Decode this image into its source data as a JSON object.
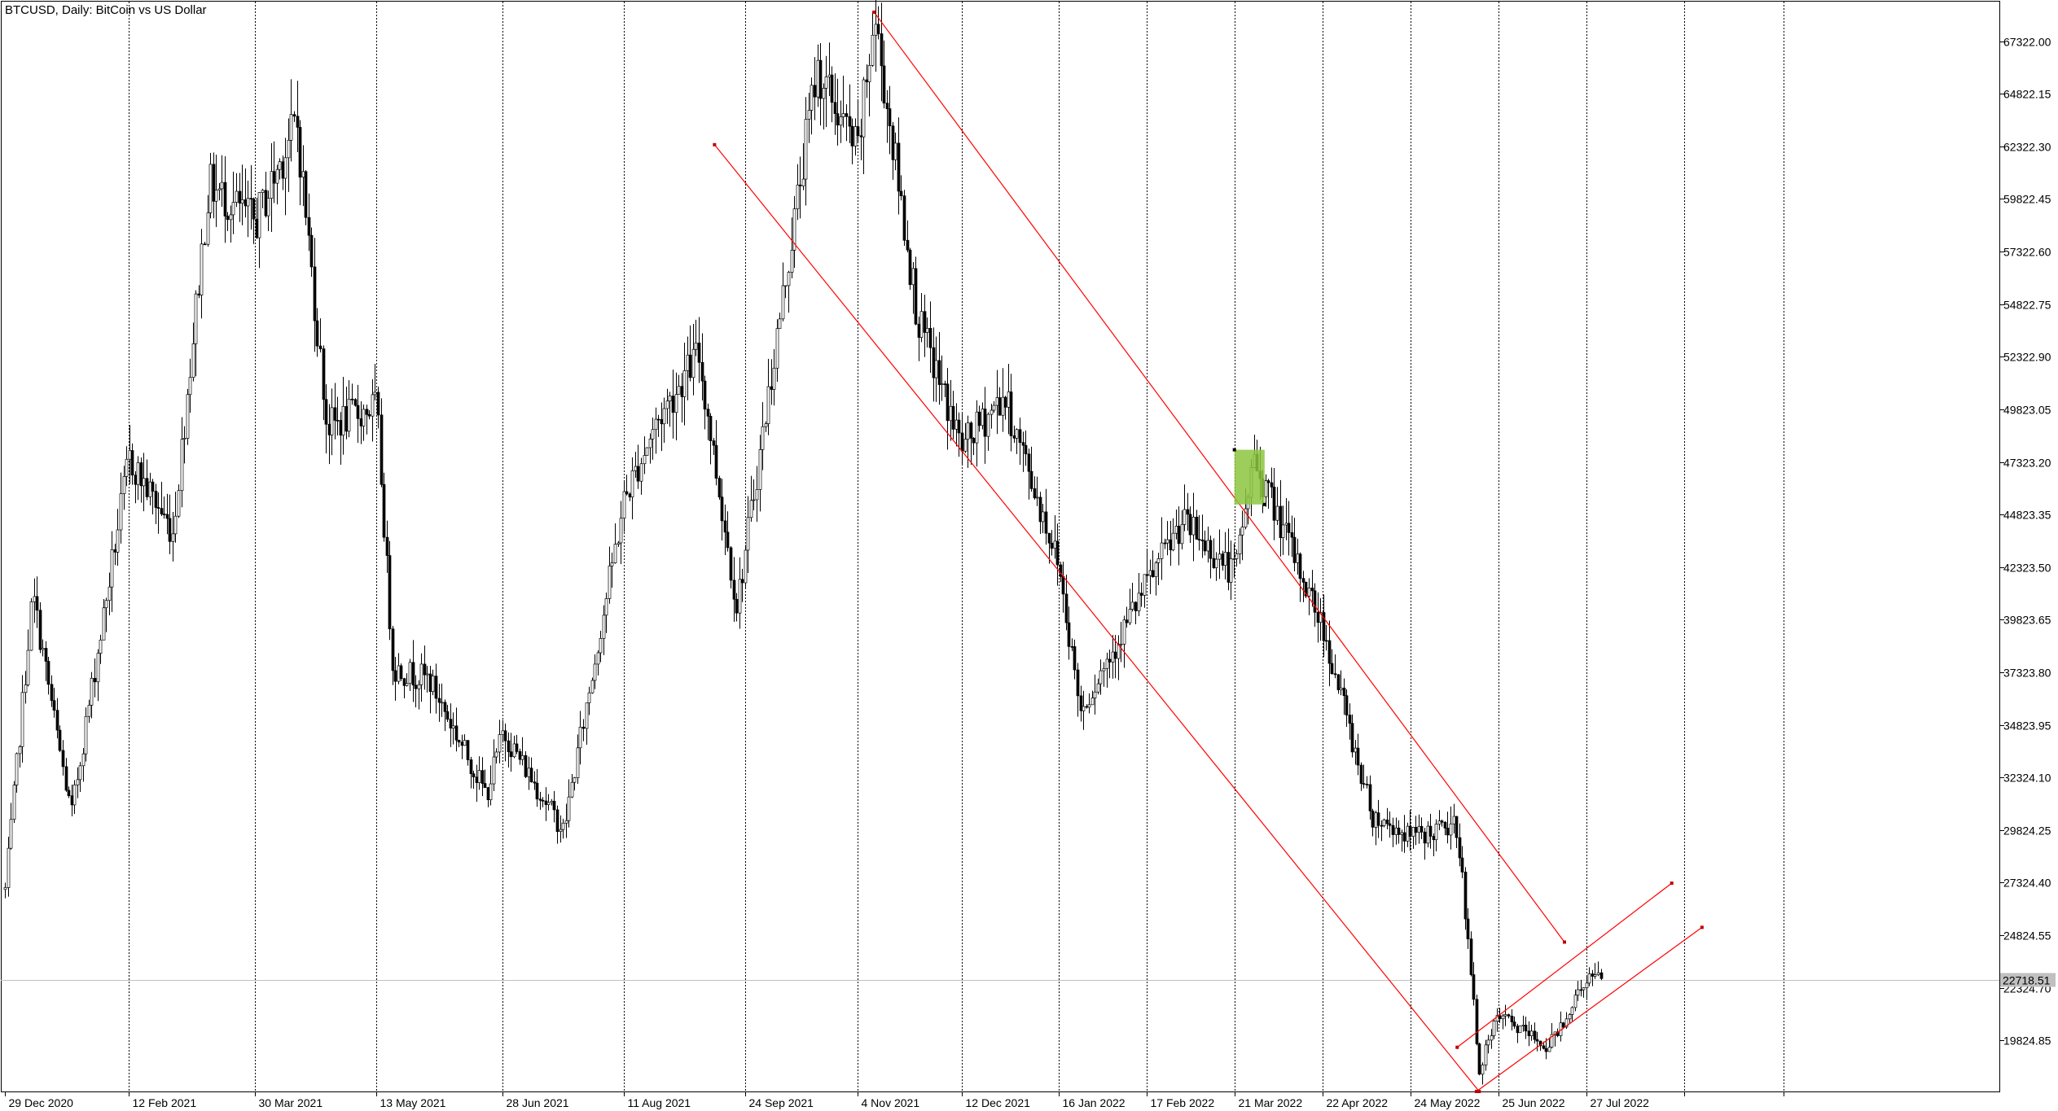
{
  "chart_data": {
    "type": "candlestick",
    "symbol": "BTCUSD",
    "timeframe": "Daily",
    "description": "BitCoin vs US Dollar",
    "title": "BTCUSD, Daily:  BitCoin vs US Dollar",
    "ylim": [
      17400,
      69200
    ],
    "grid": "vertical-dotted",
    "yticks": [
      19824.85,
      22324.7,
      24824.55,
      27324.4,
      29824.25,
      32324.1,
      34823.95,
      37323.8,
      39823.65,
      42323.5,
      44823.35,
      47323.2,
      49823.05,
      52322.9,
      54822.75,
      57322.6,
      59822.45,
      62322.3,
      64822.15,
      67322.0
    ],
    "ytick_labels": [
      "19824.85",
      "22324.70",
      "24824.55",
      "27324.40",
      "29824.25",
      "32324.10",
      "34823.95",
      "37323.80",
      "39823.65",
      "42323.50",
      "44823.35",
      "47323.20",
      "49823.05",
      "52322.90",
      "54822.75",
      "57322.60",
      "59822.45",
      "62322.30",
      "64822.15",
      "67322.00"
    ],
    "xtick_labels": [
      "29 Dec 2020",
      "12 Feb 2021",
      "30 Mar 2021",
      "13 May 2021",
      "28 Jun 2021",
      "11 Aug 2021",
      "24 Sep 2021",
      "4 Nov 2021",
      "12 Dec 2021",
      "16 Jan 2022",
      "17 Feb 2022",
      "21 Mar 2022",
      "22 Apr 2022",
      "24 May 2022",
      "25 Jun 2022",
      "27 Jul 2022"
    ],
    "current_price": 22718.51,
    "current_price_label": "22718.51",
    "price_path": [
      [
        "29 Dec 2020",
        27000
      ],
      [
        "2021-01-08",
        41000
      ],
      [
        "2021-01-22",
        30500
      ],
      [
        "12 Feb 2021",
        47500
      ],
      [
        "2021-02-28",
        44000
      ],
      [
        "2021-03-13",
        60500
      ],
      [
        "30 Mar 2021",
        58700
      ],
      [
        "2021-04-14",
        63500
      ],
      [
        "2021-04-25",
        49000
      ],
      [
        "13 May 2021",
        50000
      ],
      [
        "2021-05-19",
        37500
      ],
      [
        "2021-06-01",
        37000
      ],
      [
        "2021-06-22",
        31500
      ],
      [
        "28 Jun 2021",
        34500
      ],
      [
        "2021-07-20",
        29800
      ],
      [
        "11 Aug 2021",
        45500
      ],
      [
        "2021-08-22",
        49000
      ],
      [
        "2021-09-07",
        52500
      ],
      [
        "2021-09-21",
        40500
      ],
      [
        "24 Sep 2021",
        43000
      ],
      [
        "2021-10-20",
        66000
      ],
      [
        "4 Nov 2021",
        62000
      ],
      [
        "2021-11-10",
        68500
      ],
      [
        "2021-11-26",
        54000
      ],
      [
        "12 Dec 2021",
        48000
      ],
      [
        "2021-12-27",
        50500
      ],
      [
        "16 Jan 2022",
        42500
      ],
      [
        "2022-01-24",
        35500
      ],
      [
        "17 Feb 2022",
        41500
      ],
      [
        "2022-03-02",
        44500
      ],
      [
        "21 Mar 2022",
        42000
      ],
      [
        "2022-03-28",
        47500
      ],
      [
        "22 Apr 2022",
        39500
      ],
      [
        "2022-05-10",
        30500
      ],
      [
        "24 May 2022",
        29500
      ],
      [
        "2022-06-10",
        30000
      ],
      [
        "2022-06-18",
        18500
      ],
      [
        "25 Jun 2022",
        21000
      ],
      [
        "2022-07-13",
        19500
      ],
      [
        "27 Jul 2022",
        22800
      ],
      [
        "2022-08-02",
        22718.51
      ]
    ],
    "annotations": [
      {
        "type": "trend-channel",
        "color": "#ff0000",
        "points": [
          [
            "2021-09-13",
            62400
          ],
          [
            "2022-06-18",
            17400
          ]
        ]
      },
      {
        "type": "trend-channel",
        "color": "#ff0000",
        "points": [
          [
            "2021-11-10",
            68700
          ],
          [
            "2022-07-19",
            24500
          ]
        ]
      },
      {
        "type": "rising-channel",
        "color": "#ff0000",
        "points": [
          [
            "2022-06-10",
            19500
          ],
          [
            "2022-08-27",
            27300
          ]
        ]
      },
      {
        "type": "rising-channel",
        "color": "#ff0000",
        "points": [
          [
            "2022-06-17",
            17400
          ],
          [
            "2022-09-07",
            25200
          ]
        ]
      },
      {
        "type": "rectangle",
        "color": "#8cc63f",
        "time": [
          "2022-03-21",
          "2022-04-01"
        ],
        "price": [
          45300,
          47900
        ]
      }
    ]
  }
}
